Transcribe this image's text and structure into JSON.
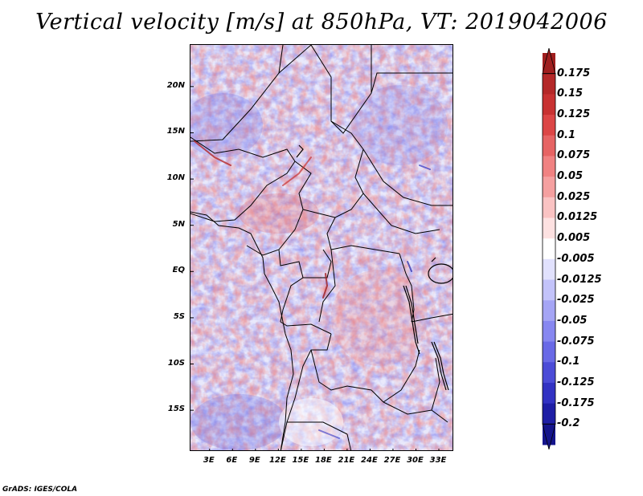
{
  "title": "Vertical velocity [m/s] at 850hPa, VT: 2019042006",
  "credit": "GrADS: IGES/COLA",
  "map": {
    "lat_ticks": [
      {
        "label": "20N",
        "value": 20
      },
      {
        "label": "15N",
        "value": 15
      },
      {
        "label": "10N",
        "value": 10
      },
      {
        "label": "5N",
        "value": 5
      },
      {
        "label": "EQ",
        "value": 0
      },
      {
        "label": "5S",
        "value": -5
      },
      {
        "label": "10S",
        "value": -10
      },
      {
        "label": "15S",
        "value": -15
      }
    ],
    "lon_ticks": [
      {
        "label": "3E",
        "value": 3
      },
      {
        "label": "6E",
        "value": 6
      },
      {
        "label": "9E",
        "value": 9
      },
      {
        "label": "12E",
        "value": 12
      },
      {
        "label": "15E",
        "value": 15
      },
      {
        "label": "18E",
        "value": 18
      },
      {
        "label": "21E",
        "value": 21
      },
      {
        "label": "24E",
        "value": 24
      },
      {
        "label": "27E",
        "value": 27
      },
      {
        "label": "30E",
        "value": 30
      },
      {
        "label": "33E",
        "value": 33
      }
    ],
    "lon_range": [
      0.5,
      35
    ],
    "lat_range": [
      -19.5,
      24.5
    ]
  },
  "colorbar": {
    "levels": [
      "0.175",
      "0.15",
      "0.125",
      "0.1",
      "0.075",
      "0.05",
      "0.025",
      "0.0125",
      "0.005",
      "-0.005",
      "-0.0125",
      "-0.025",
      "-0.05",
      "-0.075",
      "-0.1",
      "-0.125",
      "-0.175",
      "-0.2"
    ],
    "colors": [
      "#a01e1e",
      "#b42828",
      "#c83232",
      "#dc4646",
      "#e66464",
      "#f08282",
      "#f5a0a0",
      "#fac3c3",
      "#fde1e1",
      "#ffffff",
      "#e1e1fd",
      "#c3c3fa",
      "#a5a5f5",
      "#8787f0",
      "#6969e6",
      "#4b4bd7",
      "#3232c3",
      "#1e1ea5",
      "#14148c"
    ]
  },
  "chart_data": {
    "type": "heatmap",
    "title": "Vertical velocity [m/s] at 850hPa, VT: 2019042006",
    "variable": "Vertical velocity",
    "units": "m/s",
    "pressure_level": "850hPa",
    "valid_time": "2019042006",
    "x": "longitude",
    "y": "latitude",
    "xlim": [
      0.5,
      35
    ],
    "ylim": [
      -19.5,
      24.5
    ]
  }
}
